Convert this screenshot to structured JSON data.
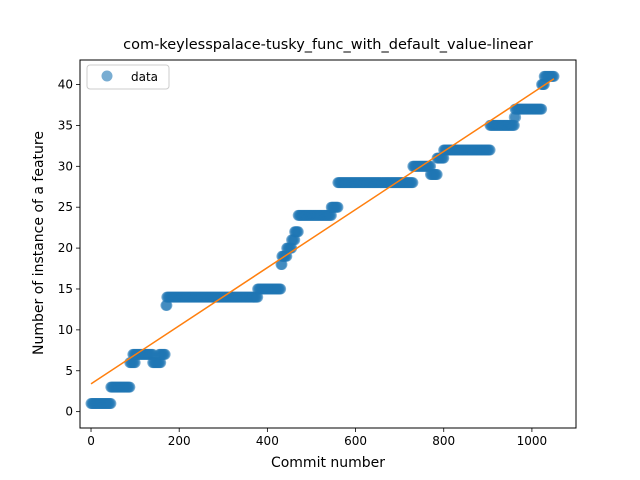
{
  "chart_data": {
    "type": "scatter",
    "title": "com-keylesspalace-tusky_func_with_default_value-linear",
    "xlabel": "Commit number",
    "ylabel": "Number of instance of a feature",
    "xlim": [
      -25,
      1100
    ],
    "ylim": [
      -2,
      43
    ],
    "xticks": [
      0,
      200,
      400,
      600,
      800,
      1000
    ],
    "yticks": [
      0,
      5,
      10,
      15,
      20,
      25,
      30,
      35,
      40
    ],
    "grid": false,
    "legend": {
      "location": "upper left",
      "entries": [
        "data"
      ]
    },
    "colors": {
      "data": "#1f77b4",
      "fit": "#ff7f0e"
    },
    "series": [
      {
        "name": "data",
        "kind": "scatter",
        "segments": [
          {
            "x_start": 0,
            "x_end": 45,
            "y": 1
          },
          {
            "x_start": 45,
            "x_end": 88,
            "y": 3
          },
          {
            "x_start": 88,
            "x_end": 100,
            "y": 6
          },
          {
            "x_start": 95,
            "x_end": 140,
            "y": 7
          },
          {
            "x_start": 140,
            "x_end": 158,
            "y": 6
          },
          {
            "x_start": 155,
            "x_end": 168,
            "y": 7
          },
          {
            "x_start": 170,
            "x_end": 172,
            "y": 13
          },
          {
            "x_start": 172,
            "x_end": 378,
            "y": 14
          },
          {
            "x_start": 378,
            "x_end": 430,
            "y": 15
          },
          {
            "x_start": 431,
            "x_end": 433,
            "y": 18
          },
          {
            "x_start": 433,
            "x_end": 444,
            "y": 19
          },
          {
            "x_start": 444,
            "x_end": 455,
            "y": 20
          },
          {
            "x_start": 455,
            "x_end": 462,
            "y": 21
          },
          {
            "x_start": 462,
            "x_end": 470,
            "y": 22
          },
          {
            "x_start": 470,
            "x_end": 545,
            "y": 24
          },
          {
            "x_start": 545,
            "x_end": 560,
            "y": 25
          },
          {
            "x_start": 560,
            "x_end": 730,
            "y": 28
          },
          {
            "x_start": 730,
            "x_end": 770,
            "y": 30
          },
          {
            "x_start": 770,
            "x_end": 785,
            "y": 29
          },
          {
            "x_start": 785,
            "x_end": 800,
            "y": 31
          },
          {
            "x_start": 800,
            "x_end": 905,
            "y": 32
          },
          {
            "x_start": 905,
            "x_end": 960,
            "y": 35
          },
          {
            "x_start": 960,
            "x_end": 963,
            "y": 36
          },
          {
            "x_start": 962,
            "x_end": 1022,
            "y": 37
          },
          {
            "x_start": 1022,
            "x_end": 1028,
            "y": 40
          },
          {
            "x_start": 1028,
            "x_end": 1050,
            "y": 41
          }
        ]
      },
      {
        "name": "",
        "kind": "line",
        "x": [
          0,
          1050
        ],
        "y": [
          3.4,
          40.7
        ]
      }
    ]
  }
}
